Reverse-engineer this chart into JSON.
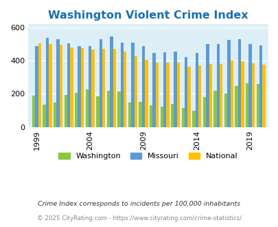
{
  "title": "Washington Violent Crime Index",
  "years": [
    1999,
    2000,
    2001,
    2002,
    2003,
    2004,
    2005,
    2006,
    2007,
    2008,
    2009,
    2010,
    2011,
    2012,
    2013,
    2014,
    2015,
    2016,
    2017,
    2018,
    2019,
    2020
  ],
  "washington": [
    190,
    135,
    150,
    195,
    205,
    225,
    185,
    220,
    215,
    148,
    153,
    130,
    125,
    140,
    115,
    98,
    180,
    220,
    203,
    248,
    265,
    260
  ],
  "missouri": [
    490,
    540,
    530,
    505,
    490,
    490,
    530,
    548,
    510,
    510,
    490,
    448,
    453,
    455,
    420,
    448,
    500,
    500,
    525,
    530,
    503,
    493
  ],
  "national": [
    507,
    500,
    495,
    480,
    474,
    467,
    473,
    473,
    457,
    430,
    405,
    390,
    387,
    387,
    365,
    373,
    382,
    382,
    400,
    397,
    383,
    378
  ],
  "x_tick_years": [
    1999,
    2004,
    2009,
    2014,
    2019
  ],
  "ylim": [
    0,
    620
  ],
  "yticks": [
    0,
    200,
    400,
    600
  ],
  "color_washington": "#8dc63f",
  "color_missouri": "#5b9bd5",
  "color_national": "#ffc000",
  "bg_color": "#ddeef6",
  "title_color": "#1a6faf",
  "title_fontsize": 11.5,
  "legend_labels": [
    "Washington",
    "Missouri",
    "National"
  ],
  "footnote1": "Crime Index corresponds to incidents per 100,000 inhabitants",
  "footnote2": "© 2025 CityRating.com - https://www.cityrating.com/crime-statistics/",
  "bar_width": 0.28
}
